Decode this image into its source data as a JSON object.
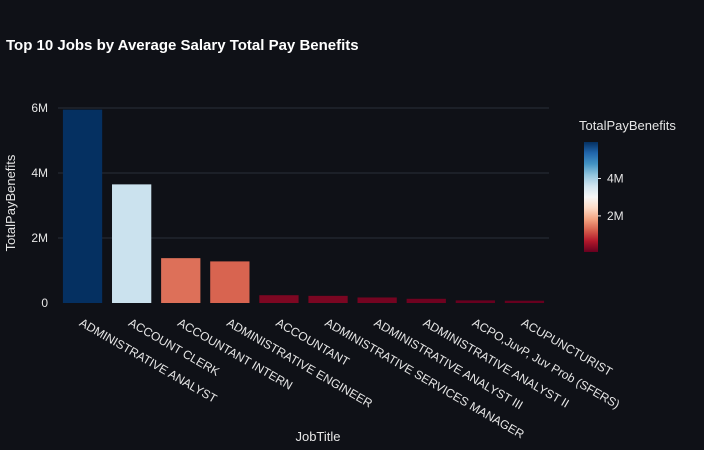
{
  "chart_data": {
    "type": "bar",
    "title": "Top 10 Jobs by Average Salary Total Pay Benefits",
    "xlabel": "JobTitle",
    "ylabel": "TotalPayBenefits",
    "categories": [
      "ADMINISTRATIVE ANALYST",
      "ACCOUNT CLERK",
      "ACCOUNTANT INTERN",
      "ADMINISTRATIVE ENGINEER",
      "ACCOUNTANT",
      "ADMINISTRATIVE SERVICES MANAGER",
      "ADMINISTRATIVE ANALYST III",
      "ADMINISTRATIVE ANALYST II",
      "ACPO,JuvP, Juv Prob (SFERS)",
      "ACUPUNCTURIST"
    ],
    "values": [
      5950000,
      3650000,
      1380000,
      1280000,
      240000,
      220000,
      170000,
      130000,
      80000,
      70000
    ],
    "ylim": [
      0,
      6000000
    ],
    "yticks": [
      {
        "value": 0,
        "label": "0"
      },
      {
        "value": 2000000,
        "label": "2M"
      },
      {
        "value": 4000000,
        "label": "4M"
      },
      {
        "value": 6000000,
        "label": "6M"
      }
    ],
    "grid": true,
    "colorscale": {
      "title": "TotalPayBenefits",
      "min": 70000,
      "max": 5950000,
      "stops": [
        "#67001f",
        "#b2182b",
        "#d6604d",
        "#f4a582",
        "#fddbc7",
        "#f7f7f7",
        "#d1e5f0",
        "#92c5de",
        "#4393c3",
        "#2166ac",
        "#053061"
      ],
      "ticks": [
        {
          "value": 2000000,
          "label": "2M"
        },
        {
          "value": 4000000,
          "label": "4M"
        }
      ]
    }
  }
}
